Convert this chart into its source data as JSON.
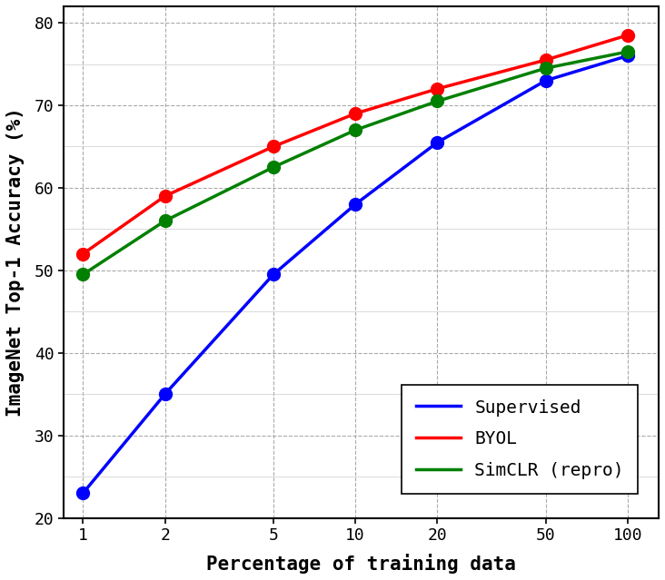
{
  "x": [
    1,
    2,
    5,
    10,
    20,
    50,
    100
  ],
  "supervised": [
    23,
    35,
    49.5,
    58,
    65.5,
    73,
    76
  ],
  "byol": [
    52,
    59,
    65,
    69,
    72,
    75.5,
    78.5
  ],
  "simclr": [
    49.5,
    56,
    62.5,
    67,
    70.5,
    74.5,
    76.5
  ],
  "colors": {
    "supervised": "#0000ff",
    "byol": "#ff0000",
    "simclr": "#008000"
  },
  "labels": {
    "supervised": "Supervised",
    "byol": "BYOL",
    "simclr": "SimCLR (repro)"
  },
  "xlabel": "Percentage of training data",
  "ylabel": "ImageNet Top-1 Accuracy (%)",
  "ylim": [
    20,
    82
  ],
  "yticks": [
    20,
    30,
    40,
    50,
    60,
    70,
    80
  ],
  "xticks": [
    1,
    2,
    5,
    10,
    20,
    50,
    100
  ],
  "linewidth": 2.5,
  "markersize": 10,
  "background_color": "#ffffff",
  "minor_grid_color": "#cccccc",
  "major_grid_color": "#aaaaaa",
  "legend_fontsize": 14,
  "axis_fontsize": 15,
  "tick_fontsize": 13
}
